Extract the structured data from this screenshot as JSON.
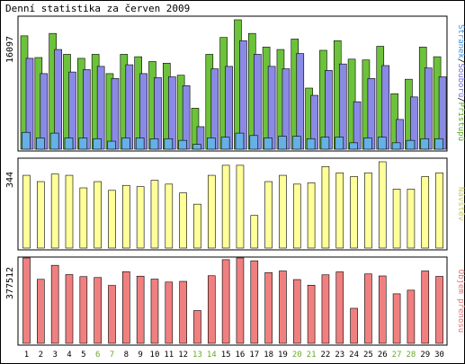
{
  "title": "Denní statistika za červen 2009",
  "chart_data": [
    {
      "type": "bar",
      "panel": "top",
      "ymax_label": "16097",
      "ylim": [
        0,
        16097
      ],
      "categories": [
        "1",
        "2",
        "3",
        "4",
        "5",
        "6",
        "7",
        "8",
        "9",
        "10",
        "11",
        "12",
        "13",
        "14",
        "15",
        "16",
        "17",
        "18",
        "19",
        "20",
        "21",
        "22",
        "23",
        "24",
        "25",
        "26",
        "27",
        "28",
        "29",
        "30"
      ],
      "weekend_days": [
        "6",
        "7",
        "13",
        "14",
        "20",
        "21",
        "27",
        "28"
      ],
      "series": [
        {
          "name": "Přístupů",
          "color": "#6cc23a",
          "values": [
            14100,
            11400,
            14400,
            11800,
            11300,
            11800,
            9400,
            11800,
            11500,
            10900,
            10700,
            9200,
            5100,
            11800,
            13900,
            16097,
            14400,
            12700,
            12400,
            13700,
            7600,
            12300,
            13500,
            11200,
            11100,
            12800,
            6900,
            8700,
            12700,
            11500
          ]
        },
        {
          "name": "Souborů",
          "color": "#8a8ae6",
          "values": [
            11300,
            9400,
            12400,
            9600,
            9900,
            10300,
            8800,
            10500,
            9400,
            8900,
            9000,
            7900,
            2800,
            10000,
            10300,
            13500,
            11800,
            10300,
            10000,
            11900,
            6700,
            9800,
            10600,
            5900,
            8800,
            10400,
            3700,
            6500,
            10100,
            9000
          ]
        },
        {
          "name": "Stránek",
          "color": "#66b0e6",
          "values": [
            2100,
            1400,
            2000,
            1400,
            1400,
            1300,
            1000,
            1400,
            1400,
            1300,
            1300,
            1100,
            600,
            1400,
            1500,
            2000,
            1700,
            1400,
            1600,
            1600,
            1300,
            1500,
            1500,
            800,
            1400,
            1500,
            800,
            1100,
            1300,
            1300
          ]
        }
      ],
      "side_label": [
        "Stránek",
        "Souborů",
        "Přístupů"
      ]
    },
    {
      "type": "bar",
      "panel": "middle",
      "ymax_label": "344",
      "ylim": [
        0,
        344
      ],
      "series": [
        {
          "name": "Návštěv",
          "color": "#ffff99",
          "values": [
            290,
            265,
            295,
            290,
            240,
            265,
            230,
            250,
            245,
            270,
            255,
            220,
            175,
            290,
            330,
            330,
            130,
            265,
            290,
            255,
            260,
            325,
            300,
            285,
            300,
            344,
            235,
            235,
            285,
            300
          ]
        }
      ],
      "side_label": [
        "Návštěv"
      ]
    },
    {
      "type": "bar",
      "panel": "bottom",
      "ymax_label": "377512",
      "ylim": [
        0,
        377512
      ],
      "series": [
        {
          "name": "Objem přenosu",
          "color": "#f08080",
          "values": [
            377512,
            283000,
            345000,
            304000,
            295000,
            291000,
            256000,
            317000,
            297000,
            284000,
            271000,
            274000,
            145000,
            299000,
            370000,
            377512,
            365000,
            313000,
            320000,
            282000,
            257000,
            303000,
            316000,
            155000,
            307000,
            298000,
            219000,
            235000,
            320000,
            296000
          ]
        }
      ],
      "side_label": [
        "Objem přenosu"
      ]
    }
  ]
}
